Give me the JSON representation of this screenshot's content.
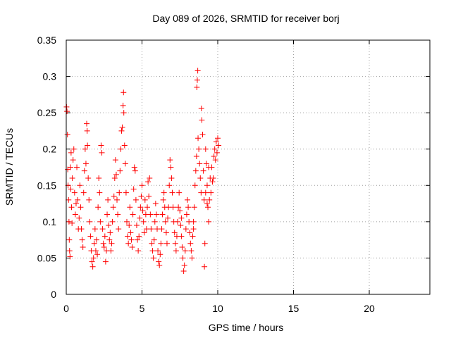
{
  "chart_data": {
    "type": "scatter",
    "title": "Day 089 of 2026, SRMTID for receiver borj",
    "xlabel": "GPS time / hours",
    "ylabel": "SRMTID / TECUs",
    "xlim": [
      0,
      24
    ],
    "ylim": [
      0,
      0.35
    ],
    "xticks": [
      0,
      5,
      10,
      15,
      20
    ],
    "xtick_labels": [
      "0",
      "5",
      "10",
      "15",
      "20"
    ],
    "yticks": [
      0,
      0.05,
      0.1,
      0.15,
      0.2,
      0.25,
      0.3,
      0.35
    ],
    "ytick_labels": [
      "0",
      "0.05",
      "0.1",
      "0.15",
      "0.2",
      "0.25",
      "0.3",
      "0.35"
    ],
    "grid": true,
    "marker": "plus",
    "color": "#ff0000",
    "series": [
      {
        "name": "SRMTID",
        "points": [
          [
            0.02,
            0.258
          ],
          [
            0.05,
            0.252
          ],
          [
            0.08,
            0.22
          ],
          [
            0.1,
            0.172
          ],
          [
            0.12,
            0.15
          ],
          [
            0.15,
            0.13
          ],
          [
            0.18,
            0.1
          ],
          [
            0.2,
            0.075
          ],
          [
            0.22,
            0.06
          ],
          [
            0.25,
            0.052
          ],
          [
            0.28,
            0.175
          ],
          [
            0.3,
            0.145
          ],
          [
            0.32,
            0.195
          ],
          [
            0.35,
            0.12
          ],
          [
            0.38,
            0.098
          ],
          [
            0.4,
            0.16
          ],
          [
            0.45,
            0.185
          ],
          [
            0.5,
            0.2
          ],
          [
            0.55,
            0.14
          ],
          [
            0.6,
            0.11
          ],
          [
            0.65,
            0.125
          ],
          [
            0.7,
            0.175
          ],
          [
            0.75,
            0.13
          ],
          [
            0.8,
            0.09
          ],
          [
            0.85,
            0.105
          ],
          [
            0.9,
            0.15
          ],
          [
            0.95,
            0.12
          ],
          [
            1.0,
            0.09
          ],
          [
            1.05,
            0.075
          ],
          [
            1.1,
            0.065
          ],
          [
            1.15,
            0.14
          ],
          [
            1.2,
            0.17
          ],
          [
            1.25,
            0.2
          ],
          [
            1.3,
            0.18
          ],
          [
            1.35,
            0.235
          ],
          [
            1.38,
            0.225
          ],
          [
            1.4,
            0.205
          ],
          [
            1.45,
            0.16
          ],
          [
            1.5,
            0.13
          ],
          [
            1.55,
            0.1
          ],
          [
            1.6,
            0.08
          ],
          [
            1.65,
            0.06
          ],
          [
            1.7,
            0.045
          ],
          [
            1.75,
            0.038
          ],
          [
            1.8,
            0.05
          ],
          [
            1.85,
            0.07
          ],
          [
            1.9,
            0.09
          ],
          [
            1.95,
            0.06
          ],
          [
            2.0,
            0.075
          ],
          [
            2.05,
            0.055
          ],
          [
            2.1,
            0.12
          ],
          [
            2.15,
            0.16
          ],
          [
            2.2,
            0.14
          ],
          [
            2.25,
            0.1
          ],
          [
            2.3,
            0.205
          ],
          [
            2.35,
            0.195
          ],
          [
            2.4,
            0.09
          ],
          [
            2.45,
            0.07
          ],
          [
            2.5,
            0.065
          ],
          [
            2.55,
            0.08
          ],
          [
            2.6,
            0.045
          ],
          [
            2.65,
            0.06
          ],
          [
            2.7,
            0.11
          ],
          [
            2.75,
            0.13
          ],
          [
            2.8,
            0.095
          ],
          [
            2.85,
            0.075
          ],
          [
            2.9,
            0.085
          ],
          [
            2.95,
            0.06
          ],
          [
            3.0,
            0.07
          ],
          [
            3.05,
            0.1
          ],
          [
            3.1,
            0.12
          ],
          [
            3.15,
            0.135
          ],
          [
            3.2,
            0.16
          ],
          [
            3.25,
            0.185
          ],
          [
            3.3,
            0.165
          ],
          [
            3.35,
            0.13
          ],
          [
            3.4,
            0.11
          ],
          [
            3.45,
            0.09
          ],
          [
            3.5,
            0.14
          ],
          [
            3.55,
            0.17
          ],
          [
            3.6,
            0.2
          ],
          [
            3.65,
            0.225
          ],
          [
            3.7,
            0.23
          ],
          [
            3.75,
            0.26
          ],
          [
            3.78,
            0.278
          ],
          [
            3.8,
            0.25
          ],
          [
            3.85,
            0.205
          ],
          [
            3.9,
            0.18
          ],
          [
            3.95,
            0.14
          ],
          [
            4.0,
            0.1
          ],
          [
            4.05,
            0.08
          ],
          [
            4.1,
            0.07
          ],
          [
            4.15,
            0.095
          ],
          [
            4.2,
            0.12
          ],
          [
            4.25,
            0.085
          ],
          [
            4.3,
            0.075
          ],
          [
            4.35,
            0.065
          ],
          [
            4.4,
            0.11
          ],
          [
            4.45,
            0.145
          ],
          [
            4.5,
            0.175
          ],
          [
            4.55,
            0.17
          ],
          [
            4.6,
            0.13
          ],
          [
            4.65,
            0.095
          ],
          [
            4.7,
            0.075
          ],
          [
            4.75,
            0.06
          ],
          [
            4.8,
            0.08
          ],
          [
            4.85,
            0.105
          ],
          [
            4.9,
            0.12
          ],
          [
            4.95,
            0.135
          ],
          [
            5.0,
            0.15
          ],
          [
            5.05,
            0.115
          ],
          [
            5.1,
            0.1
          ],
          [
            5.15,
            0.085
          ],
          [
            5.2,
            0.13
          ],
          [
            5.25,
            0.11
          ],
          [
            5.3,
            0.09
          ],
          [
            5.35,
            0.12
          ],
          [
            5.4,
            0.155
          ],
          [
            5.45,
            0.135
          ],
          [
            5.5,
            0.16
          ],
          [
            5.55,
            0.11
          ],
          [
            5.6,
            0.09
          ],
          [
            5.65,
            0.07
          ],
          [
            5.7,
            0.06
          ],
          [
            5.75,
            0.05
          ],
          [
            5.8,
            0.075
          ],
          [
            5.85,
            0.1
          ],
          [
            5.9,
            0.125
          ],
          [
            5.95,
            0.11
          ],
          [
            6.0,
            0.09
          ],
          [
            6.05,
            0.06
          ],
          [
            6.1,
            0.045
          ],
          [
            6.15,
            0.04
          ],
          [
            6.2,
            0.055
          ],
          [
            6.25,
            0.07
          ],
          [
            6.3,
            0.09
          ],
          [
            6.35,
            0.11
          ],
          [
            6.4,
            0.13
          ],
          [
            6.45,
            0.14
          ],
          [
            6.5,
            0.12
          ],
          [
            6.55,
            0.1
          ],
          [
            6.6,
            0.085
          ],
          [
            6.65,
            0.07
          ],
          [
            6.7,
            0.105
          ],
          [
            6.75,
            0.12
          ],
          [
            6.8,
            0.15
          ],
          [
            6.85,
            0.185
          ],
          [
            6.9,
            0.175
          ],
          [
            6.95,
            0.16
          ],
          [
            7.0,
            0.14
          ],
          [
            7.05,
            0.12
          ],
          [
            7.1,
            0.1
          ],
          [
            7.15,
            0.085
          ],
          [
            7.2,
            0.07
          ],
          [
            7.25,
            0.06
          ],
          [
            7.3,
            0.08
          ],
          [
            7.35,
            0.1
          ],
          [
            7.4,
            0.12
          ],
          [
            7.45,
            0.14
          ],
          [
            7.5,
            0.115
          ],
          [
            7.55,
            0.095
          ],
          [
            7.6,
            0.08
          ],
          [
            7.65,
            0.065
          ],
          [
            7.7,
            0.05
          ],
          [
            7.75,
            0.032
          ],
          [
            7.8,
            0.04
          ],
          [
            7.85,
            0.06
          ],
          [
            7.9,
            0.09
          ],
          [
            7.95,
            0.11
          ],
          [
            8.0,
            0.13
          ],
          [
            8.05,
            0.12
          ],
          [
            8.1,
            0.1
          ],
          [
            8.15,
            0.085
          ],
          [
            8.2,
            0.07
          ],
          [
            8.25,
            0.06
          ],
          [
            8.3,
            0.05
          ],
          [
            8.35,
            0.08
          ],
          [
            8.4,
            0.1
          ],
          [
            8.45,
            0.12
          ],
          [
            8.5,
            0.15
          ],
          [
            8.55,
            0.17
          ],
          [
            8.6,
            0.19
          ],
          [
            8.62,
            0.285
          ],
          [
            8.65,
            0.295
          ],
          [
            8.68,
            0.308
          ],
          [
            8.7,
            0.215
          ],
          [
            8.75,
            0.2
          ],
          [
            8.8,
            0.18
          ],
          [
            8.85,
            0.16
          ],
          [
            8.9,
            0.14
          ],
          [
            8.92,
            0.256
          ],
          [
            8.95,
            0.24
          ],
          [
            9.0,
            0.22
          ],
          [
            9.05,
            0.17
          ],
          [
            9.1,
            0.13
          ],
          [
            9.12,
            0.038
          ],
          [
            9.15,
            0.07
          ],
          [
            9.2,
            0.2
          ],
          [
            9.25,
            0.18
          ],
          [
            9.3,
            0.15
          ],
          [
            9.35,
            0.12
          ],
          [
            9.4,
            0.1
          ],
          [
            9.45,
            0.13
          ],
          [
            9.5,
            0.16
          ],
          [
            9.55,
            0.14
          ],
          [
            9.6,
            0.175
          ],
          [
            9.65,
            0.155
          ],
          [
            9.7,
            0.16
          ],
          [
            9.75,
            0.19
          ],
          [
            9.8,
            0.2
          ],
          [
            9.85,
            0.185
          ],
          [
            9.9,
            0.21
          ],
          [
            9.95,
            0.195
          ],
          [
            10.0,
            0.215
          ],
          [
            10.05,
            0.205
          ],
          [
            9.2,
            0.14
          ],
          [
            9.3,
            0.125
          ],
          [
            9.4,
            0.175
          ],
          [
            8.4,
            0.09
          ],
          [
            7.6,
            0.105
          ]
        ]
      }
    ]
  }
}
